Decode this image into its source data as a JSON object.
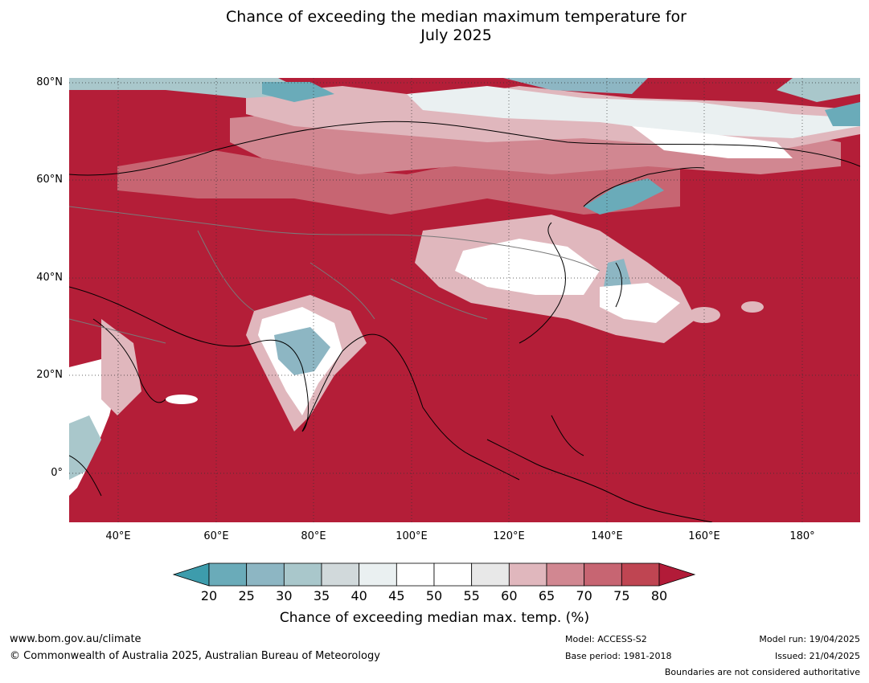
{
  "title_line1": "Chance of exceeding the median maximum temperature for",
  "title_line2": "July 2025",
  "map": {
    "lat_labels": [
      "80°N",
      "60°N",
      "40°N",
      "20°N",
      "0°"
    ],
    "lon_labels": [
      "40°E",
      "60°E",
      "80°E",
      "100°E",
      "120°E",
      "140°E",
      "160°E",
      "180°"
    ],
    "lon_range": [
      30,
      192
    ],
    "lat_range": [
      -10,
      81
    ]
  },
  "colorbar": {
    "ticks": [
      "20",
      "25",
      "30",
      "35",
      "40",
      "45",
      "50",
      "55",
      "60",
      "65",
      "70",
      "75",
      "80"
    ],
    "colors": [
      "#3d9cac",
      "#6aabb9",
      "#8db6c3",
      "#a9c7cb",
      "#d1d9db",
      "#eaf0f1",
      "#ffffff",
      "#ffffff",
      "#e8e8e8",
      "#e0b7bd",
      "#d18791",
      "#c76572",
      "#bf4552",
      "#b21b38"
    ],
    "label": "Chance of exceeding median max. temp. (%)"
  },
  "footer": {
    "website": "www.bom.gov.au/climate",
    "copyright": "© Commonwealth of Australia 2025, Australian Bureau of Meteorology",
    "model": "Model: ACCESS-S2",
    "base_period": "Base period: 1981-2018",
    "model_run": "Model run: 19/04/2025",
    "issued": "Issued: 21/04/2025",
    "boundaries": "Boundaries are not considered authoritative"
  }
}
